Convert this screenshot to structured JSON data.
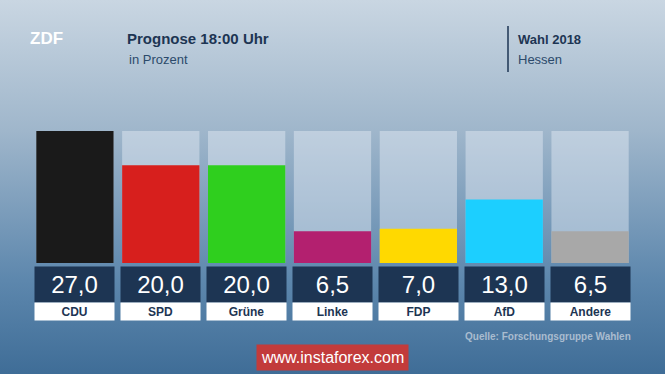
{
  "chart_data": {
    "type": "bar",
    "title": "Prognose 18:00 Uhr",
    "subtitle": "in Prozent",
    "annotations": [
      "ZDF",
      "Wahl 2018",
      "Hessen",
      "Quelle: Forschungsgruppe Wahlen",
      "www.instaforex.com"
    ],
    "categories": [
      "CDU",
      "SPD",
      "Grüne",
      "Linke",
      "FDP",
      "AfD",
      "Andere"
    ],
    "values": [
      27.0,
      20.0,
      20.0,
      6.5,
      7.0,
      13.0,
      6.5
    ],
    "value_labels": [
      "27,0",
      "20,0",
      "20,0",
      "6,5",
      "7,0",
      "13,0",
      "6,5"
    ],
    "colors": [
      "#1a1a1a",
      "#d71f1d",
      "#2fcf1e",
      "#b3206f",
      "#ffd900",
      "#1ccfff",
      "#a8a8a8"
    ],
    "ylim": [
      0,
      27
    ],
    "tick_labels": false,
    "data_labels": true,
    "grid": false
  }
}
